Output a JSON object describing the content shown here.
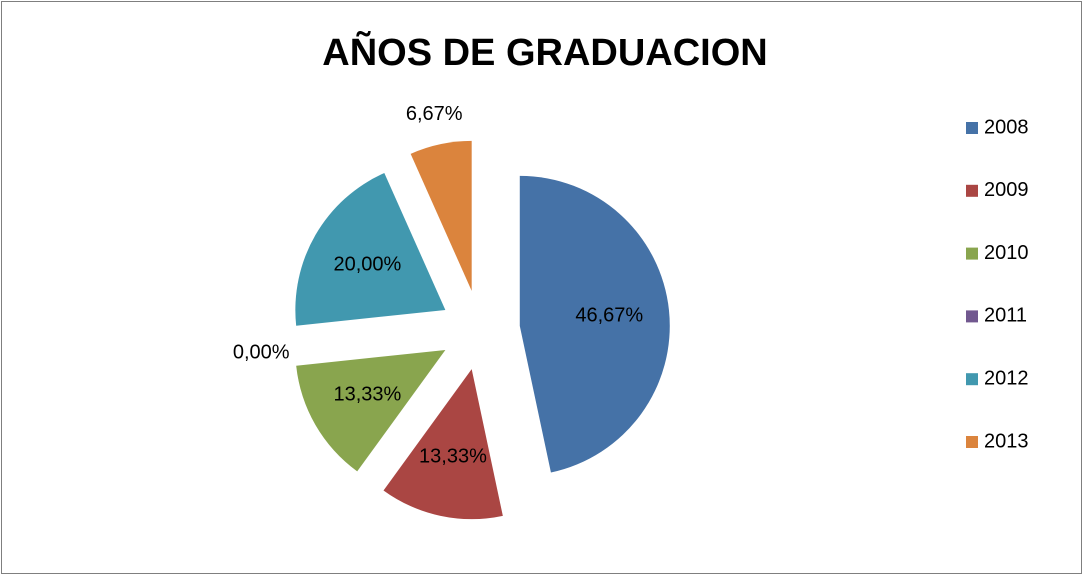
{
  "chart_data": {
    "type": "pie",
    "title": "AÑOS DE GRADUACION",
    "categories": [
      "2008",
      "2009",
      "2010",
      "2011",
      "2012",
      "2013"
    ],
    "values": [
      46.67,
      13.33,
      13.33,
      0,
      20,
      6.67
    ],
    "value_labels": [
      "46,67%",
      "13,33%",
      "13,33%",
      "0,00%",
      "20,00%",
      "6,67%"
    ],
    "colors": [
      "#4572a7",
      "#aa4643",
      "#89a54e",
      "#71588f",
      "#4198af",
      "#db843d"
    ],
    "legend": "right"
  }
}
